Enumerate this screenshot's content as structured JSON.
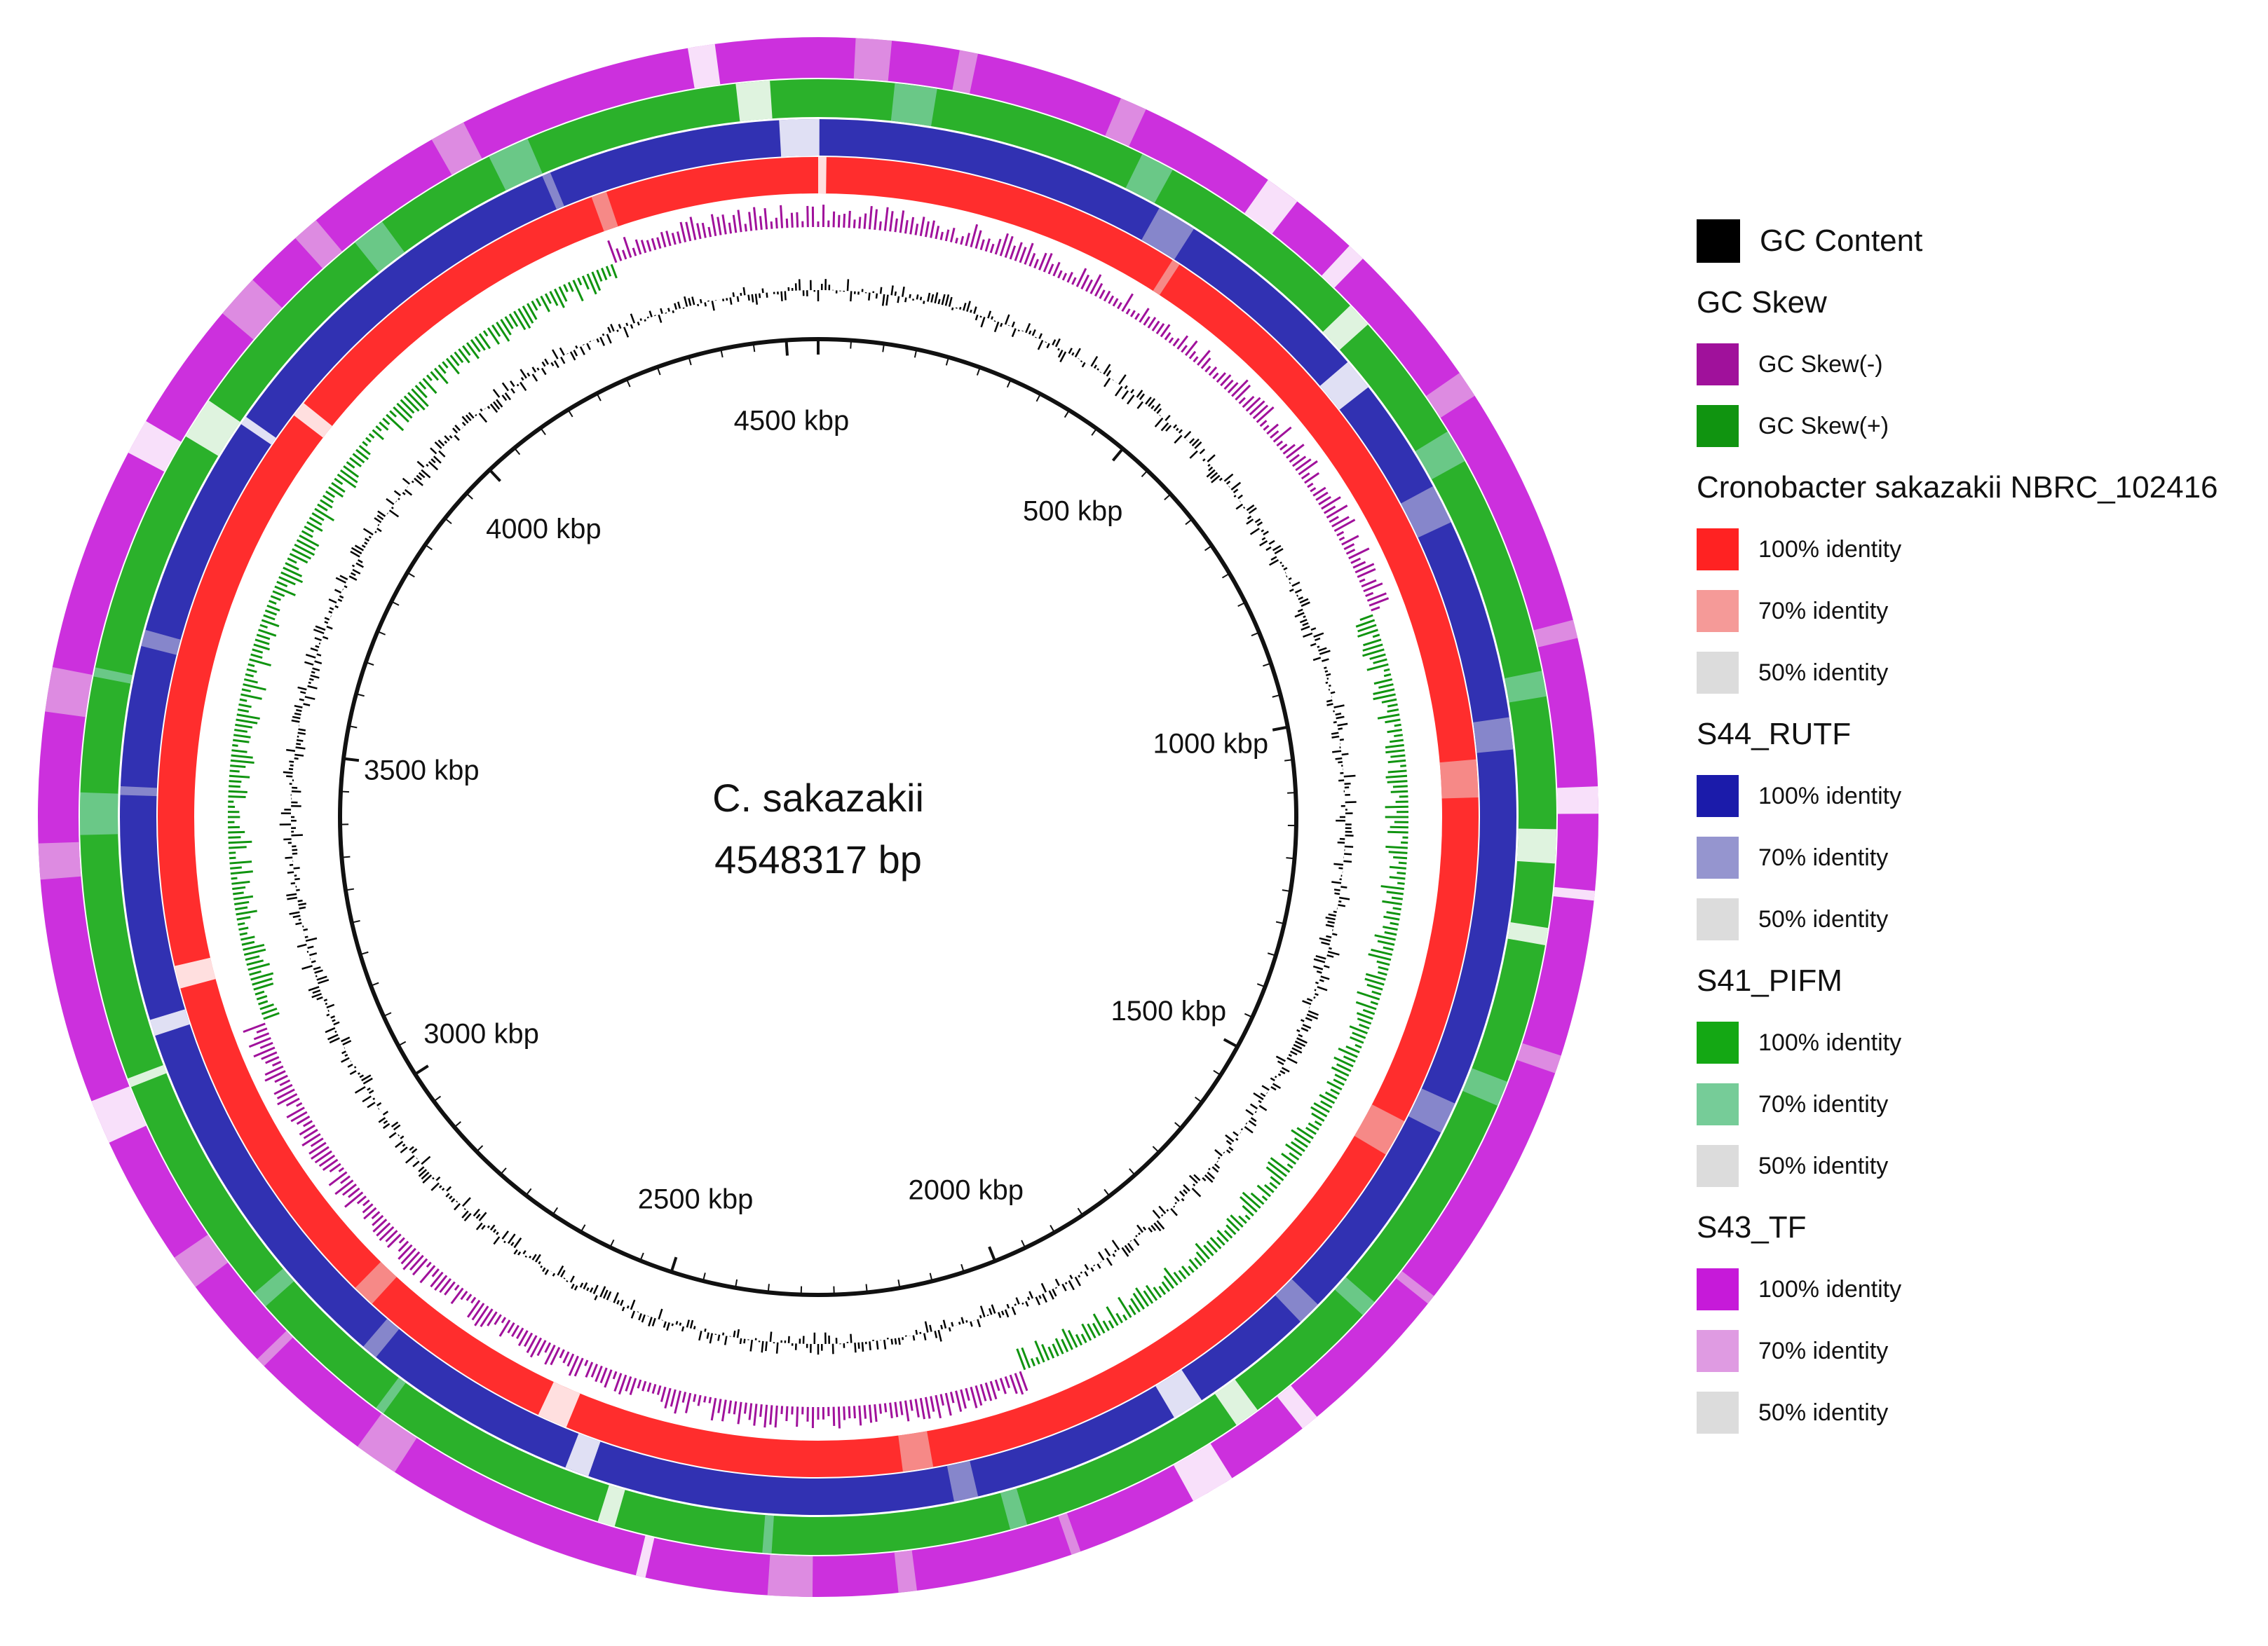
{
  "center": {
    "name": "C. sakazakii",
    "length": "4548317 bp"
  },
  "genome_length_bp": 4548317,
  "ticks": [
    {
      "label": "500 kbp",
      "bp": 500000
    },
    {
      "label": "1000 kbp",
      "bp": 1000000
    },
    {
      "label": "1500 kbp",
      "bp": 1500000
    },
    {
      "label": "2000 kbp",
      "bp": 2000000
    },
    {
      "label": "2500 kbp",
      "bp": 2500000
    },
    {
      "label": "3000 kbp",
      "bp": 3000000
    },
    {
      "label": "3500 kbp",
      "bp": 3500000
    },
    {
      "label": "4000 kbp",
      "bp": 4000000
    },
    {
      "label": "4500 kbp",
      "bp": 4500000
    }
  ],
  "legend": {
    "gc_content": {
      "label": "GC Content",
      "color": "#000000"
    },
    "gc_skew": {
      "title": "GC Skew",
      "items": [
        {
          "label": "GC Skew(-)",
          "color": "#a0119b"
        },
        {
          "label": "GC Skew(+)",
          "color": "#109410"
        }
      ]
    },
    "rings": [
      {
        "title": "Cronobacter sakazakii NBRC_102416",
        "items": [
          {
            "label": "100% identity",
            "color": "#ff2222"
          },
          {
            "label": "70% identity",
            "color": "#f59a98"
          },
          {
            "label": "50% identity",
            "color": "#dcdcdc"
          }
        ]
      },
      {
        "title": "S44_RUTF",
        "items": [
          {
            "label": "100% identity",
            "color": "#1b1baa"
          },
          {
            "label": "70% identity",
            "color": "#9595cf"
          },
          {
            "label": "50% identity",
            "color": "#dcdcdc"
          }
        ]
      },
      {
        "title": "S41_PIFM",
        "items": [
          {
            "label": "100% identity",
            "color": "#14a814"
          },
          {
            "label": "70% identity",
            "color": "#76cc98"
          },
          {
            "label": "50% identity",
            "color": "#dcdcdc"
          }
        ]
      },
      {
        "title": "S43_TF",
        "items": [
          {
            "label": "100% identity",
            "color": "#c61ad9"
          },
          {
            "label": "70% identity",
            "color": "#df9be2"
          },
          {
            "label": "50% identity",
            "color": "#dcdcdc"
          }
        ]
      }
    ]
  }
}
